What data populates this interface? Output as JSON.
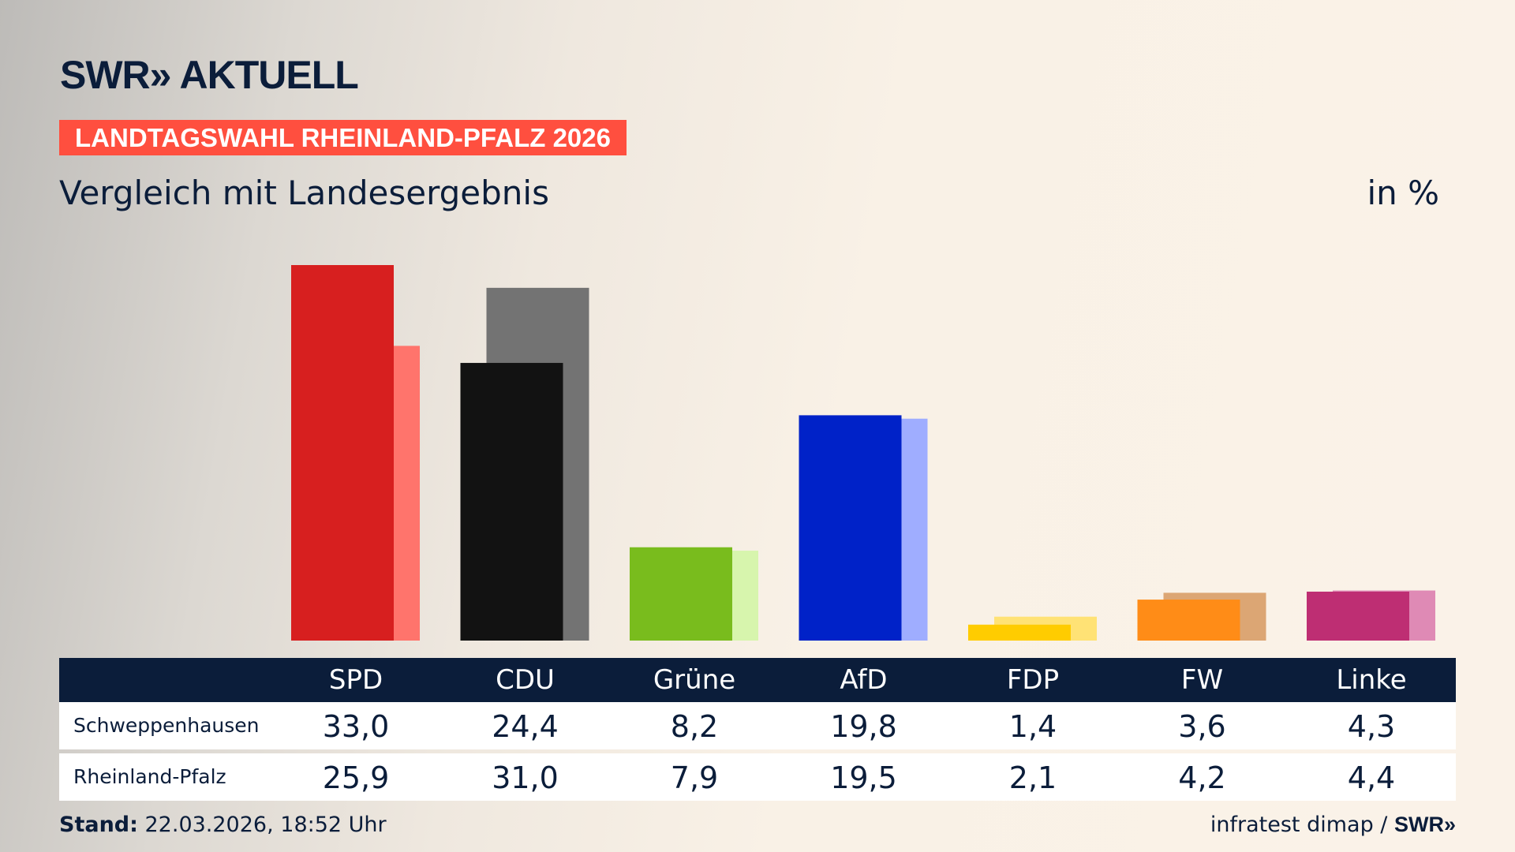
{
  "header": {
    "logo": "SWR» AKTUELL",
    "banner": "LANDTAGSWAHL RHEINLAND-PFALZ 2026",
    "subtitle": "Vergleich mit Landesergebnis",
    "unit": "in %"
  },
  "chart_data": {
    "type": "bar",
    "categories": [
      "SPD",
      "CDU",
      "Grüne",
      "AfD",
      "FDP",
      "FW",
      "Linke"
    ],
    "series": [
      {
        "name": "Schweppenhausen",
        "values": [
          33.0,
          24.4,
          8.2,
          19.8,
          1.4,
          3.6,
          4.3
        ],
        "colors": [
          "#d71f1f",
          "#121212",
          "#79bc1d",
          "#0022c8",
          "#ffcc00",
          "#ff8c17",
          "#be2e73"
        ]
      },
      {
        "name": "Rheinland-Pfalz",
        "values": [
          25.9,
          31.0,
          7.9,
          19.5,
          2.1,
          4.2,
          4.4
        ],
        "colors": [
          "#ff746c",
          "#737373",
          "#d7f5ad",
          "#9fadff",
          "#ffe275",
          "#dca674",
          "#df8ab5"
        ]
      }
    ],
    "ylim": [
      0,
      33
    ]
  },
  "table": {
    "headers": [
      "SPD",
      "CDU",
      "Grüne",
      "AfD",
      "FDP",
      "FW",
      "Linke"
    ],
    "rows": [
      {
        "label": "Schweppenhausen",
        "values": [
          "33,0",
          "24,4",
          "8,2",
          "19,8",
          "1,4",
          "3,6",
          "4,3"
        ]
      },
      {
        "label": "Rheinland-Pfalz",
        "values": [
          "25,9",
          "31,0",
          "7,9",
          "19,5",
          "2,1",
          "4,2",
          "4,4"
        ]
      }
    ]
  },
  "footer": {
    "stand_label": "Stand:",
    "stand_value": " 22.03.2026, 18:52 Uhr",
    "source": "infratest dimap / ",
    "source_logo": "SWR»"
  }
}
